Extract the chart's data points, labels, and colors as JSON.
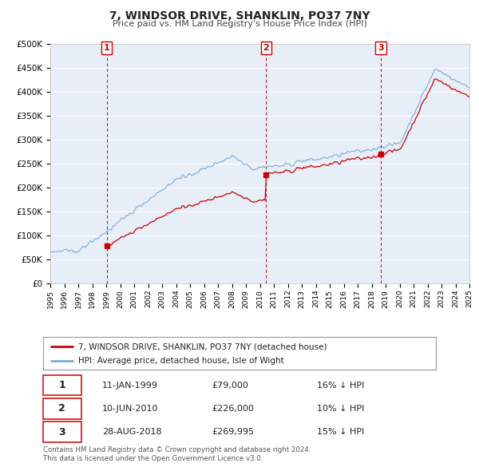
{
  "title": "7, WINDSOR DRIVE, SHANKLIN, PO37 7NY",
  "subtitle": "Price paid vs. HM Land Registry's House Price Index (HPI)",
  "house_color": "#cc0000",
  "hpi_color": "#7aadd4",
  "background_color": "#e8eef8",
  "grid_color": "#ffffff",
  "sale_dates": [
    1999.04,
    2010.44,
    2018.66
  ],
  "sale_prices": [
    79000,
    226000,
    269995
  ],
  "sale_labels": [
    "1",
    "2",
    "3"
  ],
  "legend_house": "7, WINDSOR DRIVE, SHANKLIN, PO37 7NY (detached house)",
  "legend_hpi": "HPI: Average price, detached house, Isle of Wight",
  "table_rows": [
    [
      "1",
      "11-JAN-1999",
      "£79,000",
      "16% ↓ HPI"
    ],
    [
      "2",
      "10-JUN-2010",
      "£226,000",
      "10% ↓ HPI"
    ],
    [
      "3",
      "28-AUG-2018",
      "£269,995",
      "15% ↓ HPI"
    ]
  ],
  "footnote1": "Contains HM Land Registry data © Crown copyright and database right 2024.",
  "footnote2": "This data is licensed under the Open Government Licence v3.0."
}
